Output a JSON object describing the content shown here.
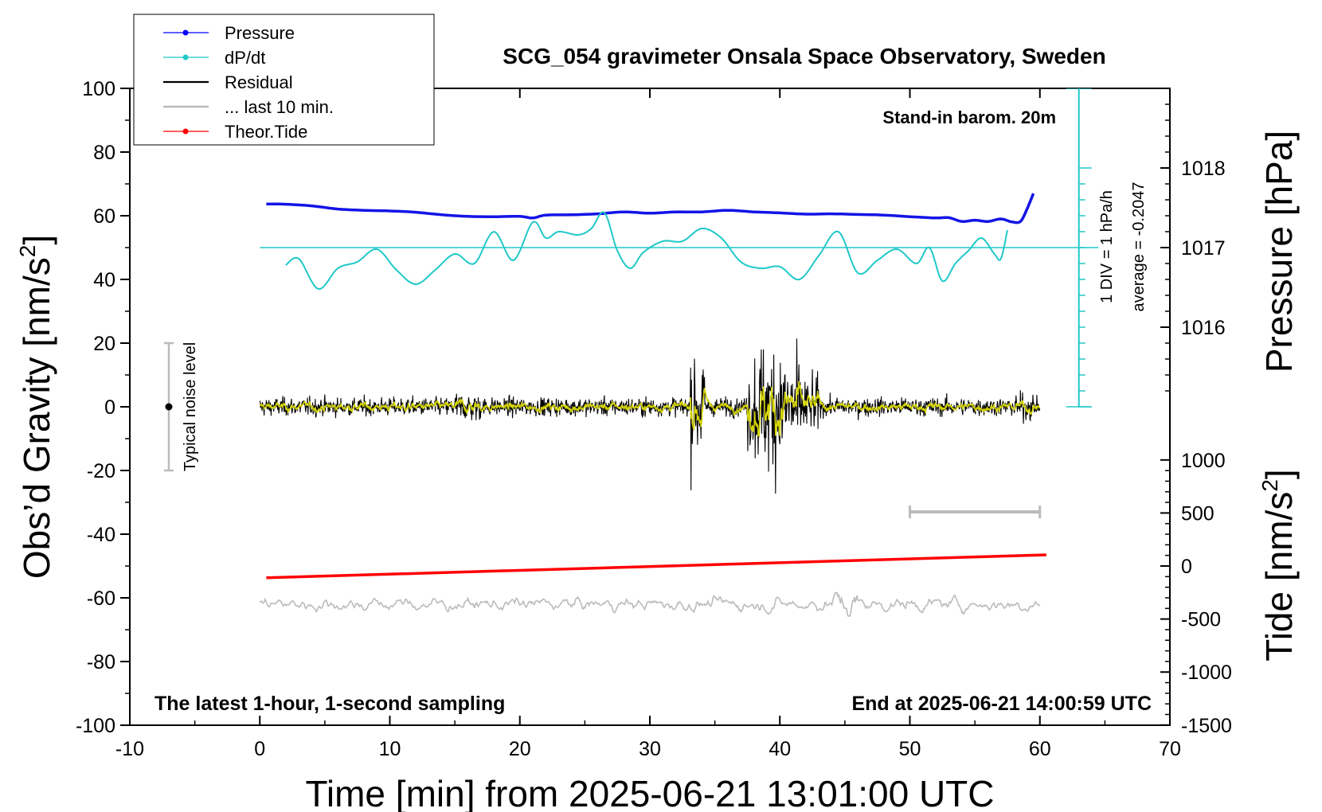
{
  "chart_data": {
    "type": "line",
    "title": "SCG_054 gravimeter Onsala Space Observatory, Sweden",
    "xlabel": "Time [min] from 2025-06-21 13:01:00 UTC",
    "ylabel_left": "Obs’d Gravity [nm/s",
    "ylabel_left_sup": "2",
    "ylabel_left_close": "]",
    "ylabel_right_top": "Pressure [hPa]",
    "ylabel_right_bottom": "Tide [nm/s",
    "ylabel_right_bottom_sup": "2",
    "ylabel_right_bottom_close": "]",
    "xlim": [
      -10,
      70
    ],
    "ylim": [
      -100,
      100
    ],
    "x_ticks": [
      "-10",
      "0",
      "10",
      "20",
      "30",
      "40",
      "50",
      "60",
      "70"
    ],
    "y_ticks": [
      "100",
      "80",
      "60",
      "40",
      "20",
      "0",
      "-20",
      "-40",
      "-60",
      "-80",
      "-100"
    ],
    "pressure_axis": {
      "ticks": [
        "1018",
        "1017",
        "1016"
      ],
      "tick_values": [
        1018,
        1017,
        1016
      ],
      "gravity_at_1017": 50,
      "gravity_per_hPa": 25
    },
    "tide_axis": {
      "ticks": [
        "1000",
        "500",
        "0",
        "-500",
        "-1000",
        "-1500"
      ],
      "tick_values": [
        1000,
        500,
        0,
        -500,
        -1000,
        -1500
      ],
      "gravity_at_0": -50,
      "gravity_per_nms2": 0.0333
    },
    "dpdt_scale": {
      "label": "1 DIV = 1 hPa/h",
      "average": "average = -0.2047",
      "div_gravity": 5,
      "divs": 15,
      "x": 63,
      "baseline": 0
    },
    "annotations": {
      "barometer": "Stand-in barom. 20m",
      "sampling": "The latest 1-hour, 1-second sampling",
      "end_time": "End at 2025-06-21 14:00:59 UTC",
      "noise": "Typical noise level"
    },
    "noise_bar": {
      "x": -7,
      "center": 0,
      "low": -20,
      "high": 20
    },
    "last10_bar": {
      "x_start": 50,
      "x_end": 60,
      "y": -33
    },
    "legend": [
      {
        "label": "Pressure",
        "color": "#0000ff",
        "marker": true
      },
      {
        "label": "dP/dt",
        "color": "#20c8c8",
        "marker": true
      },
      {
        "label": "Residual",
        "color": "#000000",
        "marker": false
      },
      {
        "label": "... last 10 min.",
        "color": "#bbbbbb",
        "marker": false
      },
      {
        "label": "Theor.Tide",
        "color": "#ff0000",
        "marker": true
      }
    ],
    "series": [
      {
        "name": "Pressure",
        "color": "#1414e6",
        "width": 3.5,
        "x": [
          0.5,
          2,
          4,
          6,
          8,
          10,
          12,
          14,
          16,
          18,
          20,
          21,
          22,
          24,
          26,
          28,
          30,
          32,
          34,
          36,
          38,
          40,
          42,
          44,
          46,
          48,
          50,
          52,
          53,
          54,
          55,
          56,
          57,
          57.8,
          58.5,
          59,
          59.5
        ],
        "y": [
          63.7,
          63.6,
          63.1,
          62.1,
          61.7,
          61.5,
          61.1,
          60.3,
          59.8,
          59.7,
          59.8,
          59.3,
          60.2,
          60.3,
          60.6,
          61.2,
          60.8,
          61.2,
          61.2,
          61.7,
          61.2,
          60.9,
          60.5,
          60.6,
          60.4,
          60.2,
          59.7,
          59.3,
          59.4,
          58.2,
          58.6,
          58.2,
          59.0,
          58.1,
          58.2,
          62.0,
          67.0
        ]
      },
      {
        "name": "dP/dt",
        "color": "#20c8c8",
        "width": 2,
        "x": [
          2,
          3,
          4.5,
          6,
          7.5,
          9,
          10.5,
          12,
          13.5,
          15,
          16.5,
          18,
          19.5,
          21,
          22,
          23,
          24.5,
          25.5,
          26.5,
          27.5,
          28.5,
          29.5,
          31,
          32.5,
          34,
          35.5,
          37,
          38.5,
          40,
          41.5,
          43,
          44.5,
          46,
          47.5,
          49,
          50.5,
          51.5,
          52.5,
          53.5,
          54.5,
          55.5,
          56.5,
          57,
          57.5
        ],
        "y": [
          44.5,
          46.5,
          37,
          43.5,
          45.5,
          49.5,
          43,
          38.5,
          43,
          48,
          45,
          55,
          46,
          58,
          53,
          55,
          54,
          56,
          61,
          49,
          43.5,
          48.5,
          52,
          52,
          56,
          53,
          45.5,
          43.5,
          44,
          40,
          47.5,
          55,
          42,
          46,
          49.5,
          45,
          50,
          39.5,
          45,
          49,
          53,
          48,
          46.5,
          55.5
        ]
      },
      {
        "name": "Residual",
        "color": "#000000",
        "x_start": 0,
        "x_end": 60
      },
      {
        "name": "Residual (smoothed)",
        "color": "#d4d400",
        "x_start": 0,
        "x_end": 60
      },
      {
        "name": "... last 10 min.",
        "color": "#bbbbbb",
        "x_start": 0,
        "x_end": 60,
        "center": -62
      },
      {
        "name": "Theor.Tide",
        "color": "#ff0000",
        "width": 3.5,
        "x": [
          0.5,
          60.5
        ],
        "y": [
          -53.7,
          -46.5
        ]
      }
    ]
  }
}
